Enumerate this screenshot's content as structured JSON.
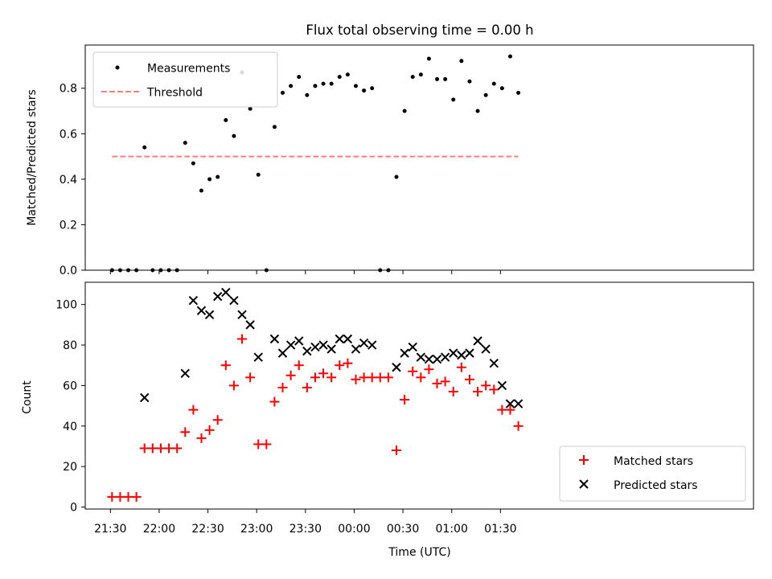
{
  "title": "Flux total observing time = 0.00 h",
  "chart_data": [
    {
      "type": "scatter",
      "ylabel": "Matched/Predicted stars",
      "ylim": [
        0,
        0.99
      ],
      "yticks": [
        0.0,
        0.2,
        0.4,
        0.6,
        0.8
      ],
      "ytick_labels": [
        "0.0",
        "0.2",
        "0.4",
        "0.6",
        "0.8"
      ],
      "legend": {
        "placement": "top-left",
        "entries": [
          "Measurements",
          "Threshold"
        ]
      },
      "series": [
        {
          "name": "Measurements",
          "marker": "dot",
          "color": "#000000",
          "x": [
            "21:31",
            "21:36",
            "21:41",
            "21:46",
            "21:56",
            "22:01",
            "22:06",
            "22:11",
            "22:16",
            "22:21",
            "22:26",
            "22:31",
            "22:36",
            "22:41",
            "22:46",
            "22:51",
            "22:56",
            "23:01",
            "23:06",
            "23:11",
            "23:16",
            "23:21",
            "23:26",
            "23:31",
            "23:36",
            "23:41",
            "23:46",
            "23:51",
            "23:56",
            "00:01",
            "00:06",
            "00:11",
            "00:16",
            "00:21",
            "00:26",
            "00:31",
            "00:36",
            "00:41",
            "00:46",
            "00:51",
            "00:56",
            "01:01",
            "01:06",
            "01:11",
            "01:16",
            "01:21",
            "01:26",
            "01:31",
            "01:36",
            "01:41"
          ],
          "x_extra": [
            "21:51"
          ],
          "y": [
            0,
            0,
            0,
            0,
            0,
            0,
            0,
            0,
            0.56,
            0.47,
            0.35,
            0.4,
            0.41,
            0.66,
            0.59,
            0.87,
            0.71,
            0.42,
            0,
            0.63,
            0.78,
            0.81,
            0.85,
            0.77,
            0.81,
            0.82,
            0.82,
            0.85,
            0.86,
            0.81,
            0.79,
            0.8,
            0,
            0,
            0.41,
            0.7,
            0.85,
            0.86,
            0.93,
            0.84,
            0.84,
            0.75,
            0.92,
            0.83,
            0.7,
            0.77,
            0.82,
            0.8,
            0.94,
            0.78
          ],
          "y_extra": [
            0.54
          ]
        },
        {
          "name": "Threshold",
          "type": "line",
          "style": "dashed",
          "color": "#ff8080",
          "x": [
            "21:31",
            "23:59",
            "01:41"
          ],
          "y": [
            0.5,
            0.5,
            0.5
          ]
        }
      ]
    },
    {
      "type": "scatter",
      "ylabel": "Count",
      "xlabel": "Time (UTC)",
      "ylim": [
        -1,
        111
      ],
      "yticks": [
        0,
        20,
        40,
        60,
        80,
        100
      ],
      "ytick_labels": [
        "0",
        "20",
        "40",
        "60",
        "80",
        "100"
      ],
      "xticks": [
        "21:30",
        "22:00",
        "22:30",
        "23:00",
        "23:30",
        "00:00",
        "00:30",
        "01:00",
        "01:30"
      ],
      "legend": {
        "placement": "bottom-right",
        "entries": [
          "Matched stars",
          "Predicted stars"
        ]
      },
      "series": [
        {
          "name": "Matched stars",
          "marker": "plus",
          "color": "#ff0000",
          "x": [
            "21:31",
            "21:36",
            "21:41",
            "21:46",
            "21:51",
            "21:56",
            "22:01",
            "22:06",
            "22:11",
            "22:16",
            "22:21",
            "22:26",
            "22:31",
            "22:36",
            "22:41",
            "22:46",
            "22:51",
            "22:56",
            "23:01",
            "23:06",
            "23:11",
            "23:16",
            "23:21",
            "23:26",
            "23:31",
            "23:36",
            "23:41",
            "23:46",
            "23:51",
            "23:56",
            "00:01",
            "00:06",
            "00:11",
            "00:16",
            "00:21",
            "00:26",
            "00:31",
            "00:36",
            "00:41",
            "00:46",
            "00:51",
            "00:56",
            "01:01",
            "01:06",
            "01:11",
            "01:16",
            "01:21",
            "01:26",
            "01:31",
            "01:36",
            "01:41"
          ],
          "y": [
            5,
            5,
            5,
            5,
            29,
            29,
            29,
            29,
            29,
            37,
            48,
            34,
            38,
            43,
            70,
            60,
            83,
            64,
            31,
            31,
            52,
            59,
            65,
            70,
            59,
            64,
            66,
            64,
            70,
            71,
            63,
            64,
            64,
            64,
            64,
            28,
            53,
            67,
            64,
            68,
            61,
            62,
            57,
            69,
            63,
            57,
            60,
            58,
            48,
            48,
            40
          ]
        },
        {
          "name": "Predicted stars",
          "marker": "x",
          "color": "#000000",
          "x": [
            "21:51",
            "22:16",
            "22:21",
            "22:26",
            "22:31",
            "22:36",
            "22:41",
            "22:46",
            "22:51",
            "22:56",
            "23:01",
            "23:11",
            "23:16",
            "23:21",
            "23:26",
            "23:31",
            "23:36",
            "23:41",
            "23:46",
            "23:51",
            "23:56",
            "00:01",
            "00:06",
            "00:11",
            "00:26",
            "00:31",
            "00:36",
            "00:41",
            "00:46",
            "00:51",
            "00:56",
            "01:01",
            "01:06",
            "01:11",
            "01:16",
            "01:21",
            "01:26",
            "01:31",
            "01:36",
            "01:41"
          ],
          "y": [
            54,
            66,
            102,
            97,
            95,
            104,
            106,
            102,
            95,
            90,
            74,
            83,
            76,
            80,
            82,
            77,
            79,
            80,
            78,
            83,
            83,
            78,
            81,
            80,
            69,
            76,
            79,
            74,
            73,
            73,
            74,
            76,
            75,
            76,
            82,
            78,
            71,
            60,
            51,
            51
          ]
        }
      ]
    }
  ]
}
